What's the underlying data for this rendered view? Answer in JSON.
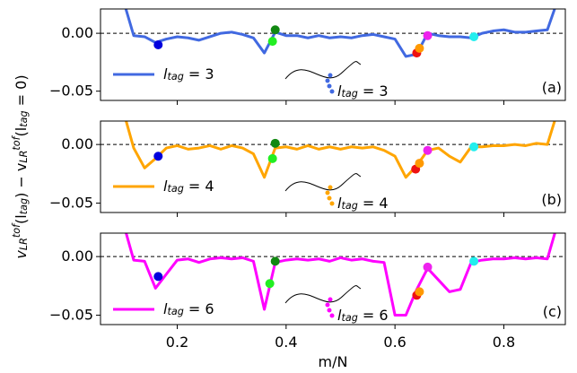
{
  "chart_data": [
    {
      "type": "line",
      "panel_label": "(a)",
      "annotation": "l_tag = 3",
      "x": [
        0.1,
        0.12,
        0.14,
        0.16,
        0.18,
        0.2,
        0.22,
        0.24,
        0.26,
        0.28,
        0.3,
        0.32,
        0.34,
        0.36,
        0.38,
        0.4,
        0.42,
        0.44,
        0.46,
        0.48,
        0.5,
        0.52,
        0.54,
        0.56,
        0.58,
        0.6,
        0.62,
        0.64,
        0.66,
        0.68,
        0.7,
        0.72,
        0.74,
        0.76,
        0.78,
        0.8,
        0.82,
        0.84,
        0.86,
        0.88,
        0.9
      ],
      "series": [
        {
          "name": "l_tag = 3",
          "color": "#4169e1",
          "values": [
            0.03,
            -0.002,
            -0.003,
            -0.008,
            -0.005,
            -0.003,
            -0.004,
            -0.006,
            -0.003,
            0.0,
            0.001,
            -0.001,
            -0.004,
            -0.017,
            0.001,
            -0.002,
            -0.002,
            -0.004,
            -0.002,
            -0.004,
            -0.003,
            -0.004,
            -0.002,
            -0.001,
            -0.003,
            -0.005,
            -0.02,
            -0.018,
            0.0,
            -0.002,
            -0.003,
            -0.003,
            -0.004,
            0.0,
            0.002,
            0.003,
            0.001,
            0.001,
            0.002,
            0.003,
            0.03
          ]
        }
      ],
      "points": {
        "x": [
          0.165,
          0.375,
          0.38,
          0.64,
          0.645,
          0.66,
          0.745
        ],
        "y": [
          -0.01,
          -0.007,
          0.003,
          -0.017,
          -0.013,
          -0.002,
          -0.003
        ],
        "colors": [
          "#0000dd",
          "#22ee22",
          "#118811",
          "#ee1111",
          "#ff9900",
          "#ee22ee",
          "#22eeee"
        ]
      },
      "hline": 0,
      "xlim": [
        0.059,
        0.913
      ],
      "xticks": [
        0.2,
        0.4,
        0.6,
        0.8
      ],
      "ylim": [
        -0.058,
        0.021
      ],
      "yticks": [
        {
          "value": 0,
          "label": "0.00"
        },
        {
          "value": -0.05,
          "label": "−0.05"
        }
      ]
    },
    {
      "type": "line",
      "panel_label": "(b)",
      "annotation": "l_tag = 4",
      "x": [
        0.1,
        0.12,
        0.14,
        0.16,
        0.18,
        0.2,
        0.22,
        0.24,
        0.26,
        0.28,
        0.3,
        0.32,
        0.34,
        0.36,
        0.38,
        0.4,
        0.42,
        0.44,
        0.46,
        0.48,
        0.5,
        0.52,
        0.54,
        0.56,
        0.58,
        0.6,
        0.62,
        0.64,
        0.66,
        0.68,
        0.7,
        0.72,
        0.74,
        0.76,
        0.78,
        0.8,
        0.82,
        0.84,
        0.86,
        0.88,
        0.9
      ],
      "series": [
        {
          "name": "l_tag = 4",
          "color": "#ffa500",
          "values": [
            0.03,
            -0.003,
            -0.02,
            -0.012,
            -0.003,
            -0.001,
            -0.004,
            -0.003,
            -0.001,
            -0.004,
            -0.001,
            -0.003,
            -0.008,
            -0.028,
            -0.003,
            -0.002,
            -0.004,
            -0.001,
            -0.004,
            -0.002,
            -0.004,
            -0.002,
            -0.003,
            -0.002,
            -0.005,
            -0.01,
            -0.028,
            -0.018,
            -0.005,
            -0.003,
            -0.01,
            -0.015,
            -0.002,
            -0.002,
            -0.001,
            -0.001,
            0.0,
            -0.001,
            0.001,
            0.0,
            0.03
          ]
        }
      ],
      "points": {
        "x": [
          0.165,
          0.375,
          0.38,
          0.638,
          0.645,
          0.66,
          0.745
        ],
        "y": [
          -0.01,
          -0.012,
          0.001,
          -0.021,
          -0.016,
          -0.005,
          -0.002
        ],
        "colors": [
          "#0000dd",
          "#22ee22",
          "#118811",
          "#ee1111",
          "#ff9900",
          "#ee22ee",
          "#22eeee"
        ]
      },
      "hline": 0,
      "xlim": [
        0.059,
        0.913
      ],
      "xticks": [
        0.2,
        0.4,
        0.6,
        0.8
      ],
      "ylim": [
        -0.058,
        0.02
      ],
      "yticks": [
        {
          "value": 0,
          "label": "0.00"
        },
        {
          "value": -0.05,
          "label": "−0.05"
        }
      ]
    },
    {
      "type": "line",
      "panel_label": "(c)",
      "annotation": "l_tag = 6",
      "xlabel": "m/N",
      "ylabel": "v_LR^tof(l_tag) − v_LR^tof(l_tag = 0)",
      "x": [
        0.1,
        0.12,
        0.14,
        0.16,
        0.18,
        0.2,
        0.22,
        0.24,
        0.26,
        0.28,
        0.3,
        0.32,
        0.34,
        0.36,
        0.38,
        0.4,
        0.42,
        0.44,
        0.46,
        0.48,
        0.5,
        0.52,
        0.54,
        0.56,
        0.58,
        0.6,
        0.62,
        0.64,
        0.66,
        0.68,
        0.7,
        0.72,
        0.74,
        0.76,
        0.78,
        0.8,
        0.82,
        0.84,
        0.86,
        0.88,
        0.9
      ],
      "series": [
        {
          "name": "l_tag = 6",
          "color": "#ff00ff",
          "values": [
            0.03,
            -0.003,
            -0.004,
            -0.027,
            -0.015,
            -0.003,
            -0.002,
            -0.005,
            -0.002,
            -0.001,
            -0.002,
            -0.001,
            -0.004,
            -0.045,
            -0.005,
            -0.003,
            -0.002,
            -0.003,
            -0.002,
            -0.004,
            -0.001,
            -0.003,
            -0.002,
            -0.004,
            -0.005,
            -0.05,
            -0.05,
            -0.028,
            -0.01,
            -0.02,
            -0.03,
            -0.028,
            -0.005,
            -0.003,
            -0.002,
            -0.002,
            -0.001,
            -0.002,
            -0.001,
            -0.002,
            0.03
          ]
        }
      ],
      "points": {
        "x": [
          0.165,
          0.37,
          0.38,
          0.64,
          0.645,
          0.66,
          0.745
        ],
        "y": [
          -0.017,
          -0.023,
          -0.004,
          -0.033,
          -0.03,
          -0.009,
          -0.004
        ],
        "colors": [
          "#0000dd",
          "#22ee22",
          "#118811",
          "#ee1111",
          "#ff9900",
          "#ee22ee",
          "#22eeee"
        ]
      },
      "hline": 0,
      "xlim": [
        0.059,
        0.913
      ],
      "xticks": [
        0.2,
        0.4,
        0.6,
        0.8
      ],
      "ylim": [
        -0.058,
        0.02
      ],
      "yticks": [
        {
          "value": 0,
          "label": "0.00"
        },
        {
          "value": -0.05,
          "label": "−0.05"
        }
      ]
    }
  ]
}
